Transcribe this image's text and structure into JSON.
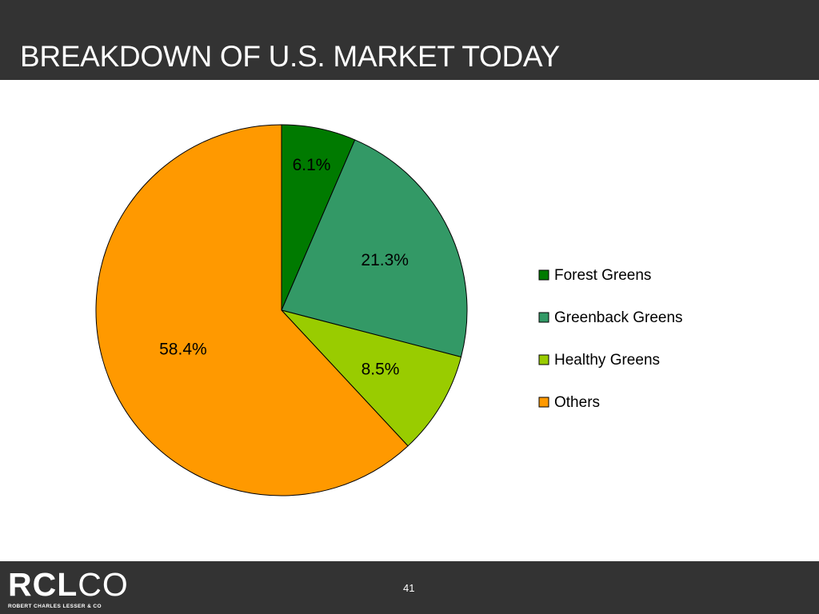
{
  "slide": {
    "title": "BREAKDOWN OF U.S. MARKET TODAY",
    "page_number": "41"
  },
  "logo": {
    "mark": "RCLCO",
    "tagline": "ROBERT CHARLES LESSER & CO"
  },
  "colors": {
    "header_bg": "#333333",
    "footer_bg": "#333333",
    "forest_greens": "#007A00",
    "greenback_greens": "#339966",
    "healthy_greens": "#99CC00",
    "others": "#FF9900"
  },
  "chart_data": {
    "type": "pie",
    "title": "BREAKDOWN OF U.S. MARKET TODAY",
    "categories": [
      "Forest Greens",
      "Greenback Greens",
      "Healthy Greens",
      "Others"
    ],
    "values": [
      6.1,
      21.3,
      8.5,
      58.4
    ],
    "labels": [
      "6.1%",
      "21.3%",
      "8.5%",
      "58.4%"
    ],
    "colors": [
      "#007A00",
      "#339966",
      "#99CC00",
      "#FF9900"
    ],
    "start_angle_deg": 0,
    "direction": "clockwise",
    "legend_position": "right"
  }
}
